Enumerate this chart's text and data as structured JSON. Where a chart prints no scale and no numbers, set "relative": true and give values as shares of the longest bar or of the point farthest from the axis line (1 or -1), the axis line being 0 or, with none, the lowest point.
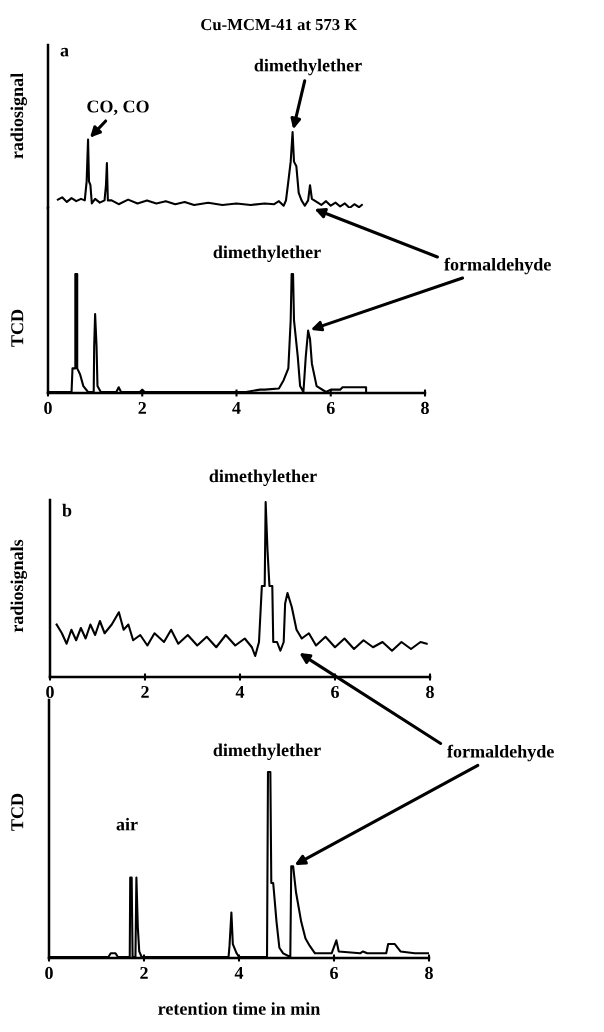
{
  "chart_data": [
    {
      "type": "line",
      "relative": true,
      "title": "Cu-MCM-41 at 573 K",
      "ylabel": "radiosignal",
      "xlim": [
        0,
        8
      ],
      "tick_labels": false,
      "annotations": [
        "a",
        {
          "text": "CO, CO",
          "x": 0.85,
          "y": 0.9
        },
        {
          "text": "dimethylether",
          "x": 5.19,
          "y": 1.0
        }
      ],
      "series": [
        {
          "color": "#000000",
          "x": [
            0.21,
            0.3,
            0.4,
            0.5,
            0.6,
            0.7,
            0.78,
            0.82,
            0.85,
            0.87,
            0.9,
            0.93,
            1.0,
            1.1,
            1.2,
            1.23,
            1.25,
            1.27,
            1.35,
            1.5,
            1.7,
            1.9,
            2.1,
            2.3,
            2.5,
            2.7,
            2.9,
            3.1,
            3.4,
            3.7,
            4.0,
            4.3,
            4.6,
            4.8,
            4.9,
            5.0,
            5.05,
            5.1,
            5.15,
            5.19,
            5.22,
            5.27,
            5.32,
            5.38,
            5.45,
            5.52,
            5.56,
            5.6,
            5.7,
            5.8,
            5.9,
            6.0,
            6.1,
            6.2,
            6.3,
            6.4,
            6.5,
            6.6,
            6.66
          ],
          "values": [
            0.11,
            0.14,
            0.08,
            0.13,
            0.09,
            0.12,
            0.1,
            0.35,
            0.9,
            0.35,
            0.3,
            0.06,
            0.12,
            0.07,
            0.1,
            0.3,
            0.59,
            0.1,
            0.1,
            0.05,
            0.11,
            0.06,
            0.1,
            0.06,
            0.09,
            0.05,
            0.08,
            0.04,
            0.07,
            0.04,
            0.06,
            0.04,
            0.06,
            0.05,
            0.09,
            0.03,
            0.1,
            0.35,
            0.61,
            1.0,
            0.61,
            0.55,
            0.2,
            0.1,
            0.03,
            0.1,
            0.3,
            0.12,
            0.08,
            0.04,
            0.09,
            0.03,
            0.07,
            0.02,
            0.06,
            0.0,
            0.05,
            0.01,
            0.04
          ]
        }
      ]
    },
    {
      "type": "line",
      "relative": true,
      "ylabel": "TCD",
      "xlim": [
        0,
        8
      ],
      "xticks": [
        0,
        2,
        4,
        6,
        8
      ],
      "tick_labels": "x",
      "annotations": [
        {
          "text": "dimethylether",
          "x": 5.17,
          "y": 1.0
        },
        {
          "text": "formaldehyde",
          "x": 5.52,
          "y": 0.52
        }
      ],
      "series": [
        {
          "color": "#000000",
          "x": [
            0,
            0.5,
            0.52,
            0.58,
            0.58,
            0.62,
            0.62,
            0.68,
            0.75,
            0.85,
            0.97,
            0.98,
            1.0,
            1.03,
            1.05,
            1.12,
            1.45,
            1.5,
            1.55,
            1.95,
            2.0,
            2.05,
            4.2,
            4.5,
            4.6,
            4.9,
            5.0,
            5.1,
            5.15,
            5.17,
            5.2,
            5.22,
            5.3,
            5.35,
            5.42,
            5.47,
            5.52,
            5.56,
            5.6,
            5.7,
            5.9,
            6.0,
            6.2,
            6.25,
            6.75,
            6.75
          ],
          "values": [
            0,
            0,
            0.2,
            0.2,
            1.0,
            1.0,
            0.2,
            0.15,
            0.05,
            0,
            0,
            0.39,
            0.66,
            0.39,
            0.05,
            0,
            0,
            0.04,
            0,
            0,
            0.02,
            0,
            0,
            0.02,
            0.02,
            0.03,
            0.1,
            0.2,
            0.61,
            1.0,
            1.0,
            0.61,
            0.3,
            0.05,
            0,
            0.3,
            0.52,
            0.45,
            0.24,
            0.05,
            0,
            0.02,
            0.02,
            0.04,
            0.04,
            0
          ]
        }
      ]
    },
    {
      "type": "line",
      "relative": true,
      "ylabel": "radiosignals",
      "xlim": [
        0,
        8
      ],
      "xticks": [
        0,
        2,
        4,
        6,
        8
      ],
      "tick_labels": "x",
      "annotations": [
        "b",
        {
          "text": "dimethylether",
          "x": 4.54,
          "y": 1.0
        }
      ],
      "series": [
        {
          "color": "#000000",
          "x": [
            0.14,
            0.25,
            0.35,
            0.45,
            0.55,
            0.65,
            0.75,
            0.85,
            0.95,
            1.05,
            1.15,
            1.3,
            1.45,
            1.55,
            1.65,
            1.75,
            1.9,
            2.05,
            2.2,
            2.4,
            2.55,
            2.7,
            2.9,
            3.1,
            3.3,
            3.5,
            3.7,
            3.9,
            4.1,
            4.25,
            4.32,
            4.4,
            4.46,
            4.52,
            4.54,
            4.58,
            4.62,
            4.68,
            4.7,
            4.78,
            4.85,
            4.92,
            4.95,
            5.0,
            5.09,
            5.19,
            5.3,
            5.45,
            5.6,
            5.8,
            6.0,
            6.2,
            6.4,
            6.6,
            6.8,
            7.0,
            7.2,
            7.4,
            7.6,
            7.8,
            7.93
          ],
          "values": [
            0.3,
            0.25,
            0.19,
            0.27,
            0.21,
            0.28,
            0.22,
            0.3,
            0.24,
            0.32,
            0.25,
            0.3,
            0.37,
            0.27,
            0.3,
            0.21,
            0.24,
            0.18,
            0.25,
            0.2,
            0.27,
            0.19,
            0.24,
            0.18,
            0.23,
            0.17,
            0.24,
            0.18,
            0.22,
            0.17,
            0.12,
            0.2,
            0.52,
            0.52,
            1.0,
            0.72,
            0.52,
            0.52,
            0.2,
            0.2,
            0.15,
            0.2,
            0.42,
            0.48,
            0.4,
            0.27,
            0.22,
            0.25,
            0.18,
            0.23,
            0.17,
            0.22,
            0.16,
            0.21,
            0.17,
            0.2,
            0.15,
            0.2,
            0.16,
            0.2,
            0.19
          ]
        }
      ]
    },
    {
      "type": "line",
      "relative": true,
      "ylabel": "TCD",
      "xlabel": "retention time in min",
      "xlim": [
        0,
        8
      ],
      "xticks": [
        0,
        2,
        4,
        6,
        8
      ],
      "tick_labels": "x",
      "annotations": [
        {
          "text": "dimethylether",
          "x": 4.61,
          "y": 1.0
        },
        "air",
        {
          "text": "formaldehyde",
          "x": 5.12,
          "y": 0.49
        }
      ],
      "series": [
        {
          "color": "#000000",
          "x": [
            0,
            1.25,
            1.3,
            1.4,
            1.45,
            1.7,
            1.71,
            1.74,
            1.76,
            1.82,
            1.84,
            1.87,
            1.9,
            1.95,
            3.78,
            3.8,
            3.84,
            3.87,
            3.95,
            4.0,
            4.59,
            4.61,
            4.66,
            4.68,
            4.72,
            4.79,
            4.85,
            4.93,
            5.08,
            5.1,
            5.14,
            5.2,
            5.31,
            5.4,
            5.49,
            5.6,
            5.95,
            6.05,
            6.1,
            6.55,
            6.61,
            6.7,
            7.1,
            7.14,
            7.28,
            7.4,
            7.7,
            8.0
          ],
          "values": [
            0,
            0,
            0.02,
            0.02,
            0,
            0,
            0.43,
            0.43,
            0,
            0,
            0.43,
            0.16,
            0.03,
            0,
            0,
            0.06,
            0.24,
            0.07,
            0.02,
            0,
            0,
            1.0,
            1.0,
            0.4,
            0.4,
            0.19,
            0.05,
            0.02,
            0,
            0.49,
            0.49,
            0.35,
            0.19,
            0.1,
            0.06,
            0.02,
            0.02,
            0.09,
            0.03,
            0.02,
            0.03,
            0.02,
            0.02,
            0.07,
            0.07,
            0.03,
            0.02,
            0.02
          ]
        }
      ]
    }
  ]
}
